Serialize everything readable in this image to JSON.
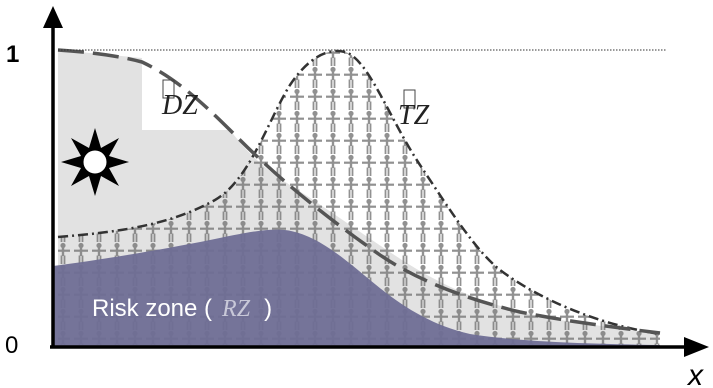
{
  "axes": {
    "y_tick_top": "1",
    "y_tick_bottom": "0",
    "x_label": "x"
  },
  "zones": {
    "dz_label": "DZ",
    "tz_label": "TZ",
    "rz_label_prefix": "Risk zone (",
    "rz_label_symbol": "RZ",
    "rz_label_suffix": ")"
  },
  "icons": {
    "sun": "sun-icon"
  },
  "colors": {
    "dz_fill": "#e2e2e2",
    "rz_fill": "#6f6e95",
    "axis": "#000000",
    "pattern": "#8a8a8a",
    "dashed_curve": "#555555"
  }
}
